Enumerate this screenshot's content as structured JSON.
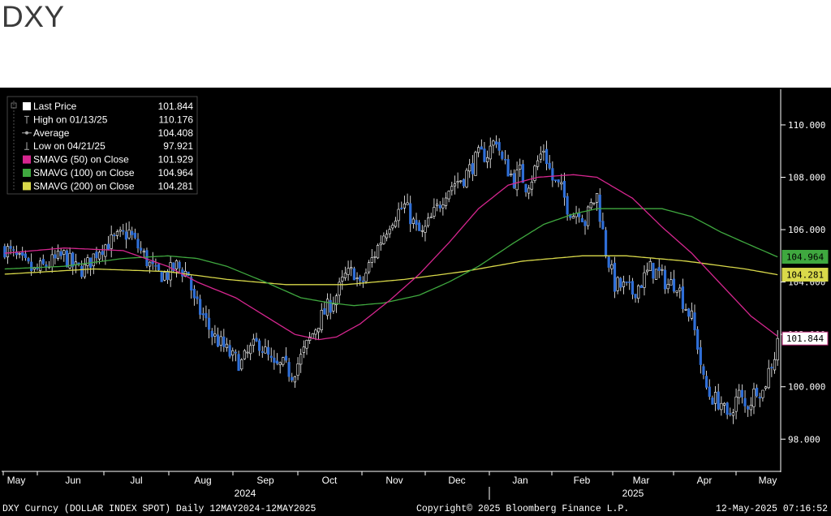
{
  "title": "DXY",
  "chart_data": {
    "type": "candlestick",
    "title": "DXY",
    "ylim": [
      96.8,
      111.3
    ],
    "y_ticks": [
      98,
      100,
      102,
      104,
      106,
      108,
      110
    ],
    "y_tick_labels": [
      "98.000",
      "100.000",
      "102.000",
      "104.000",
      "106.000",
      "108.000",
      "110.000"
    ],
    "x_months": [
      "May",
      "Jun",
      "Jul",
      "Aug",
      "Sep",
      "Oct",
      "Nov",
      "Dec",
      "Jan",
      "Feb",
      "Mar",
      "Apr",
      "May"
    ],
    "x_years": [
      "2024",
      "2025"
    ],
    "grid": false,
    "legend_position": "top-left",
    "colors": {
      "background": "#000000",
      "price": "#ffffff",
      "down_candle": "#2f6fd8",
      "smavg50": "#d6268f",
      "smavg100": "#3fa83f",
      "smavg200": "#d9d94a"
    },
    "legend": [
      {
        "label": "Last Price",
        "value": "101.844",
        "marker": "white-box"
      },
      {
        "label": "High on 01/13/25",
        "value": "110.176",
        "marker": "high-icon"
      },
      {
        "label": "Average",
        "value": "104.408",
        "marker": "average-icon"
      },
      {
        "label": "Low on 04/21/25",
        "value": "97.921",
        "marker": "low-icon"
      },
      {
        "label": "SMAVG (50)  on Close",
        "value": "101.929",
        "marker": "magenta-box"
      },
      {
        "label": "SMAVG (100)  on Close",
        "value": "104.964",
        "marker": "green-box"
      },
      {
        "label": "SMAVG (200)  on Close",
        "value": "104.281",
        "marker": "yellow-box"
      }
    ],
    "price_anchors": [
      [
        0,
        105.3
      ],
      [
        5,
        104.8
      ],
      [
        10,
        104.4
      ],
      [
        15,
        104.7
      ],
      [
        20,
        105.0
      ],
      [
        24,
        104.5
      ],
      [
        27,
        104.5
      ],
      [
        32,
        105.3
      ],
      [
        37,
        105.6
      ],
      [
        42,
        105.9
      ],
      [
        44,
        105.5
      ],
      [
        47,
        105.0
      ],
      [
        51,
        104.3
      ],
      [
        55,
        104.3
      ],
      [
        58,
        104.6
      ],
      [
        62,
        104.3
      ],
      [
        64,
        103.2
      ],
      [
        67,
        102.7
      ],
      [
        70,
        102.0
      ],
      [
        74,
        101.5
      ],
      [
        77,
        101.1
      ],
      [
        80,
        100.9
      ],
      [
        83,
        101.4
      ],
      [
        86,
        101.7
      ],
      [
        88,
        101.3
      ],
      [
        91,
        100.7
      ],
      [
        94,
        100.8
      ],
      [
        97,
        100.5
      ],
      [
        100,
        101.1
      ],
      [
        103,
        101.8
      ],
      [
        106,
        102.5
      ],
      [
        109,
        103.0
      ],
      [
        112,
        103.5
      ],
      [
        115,
        104.2
      ],
      [
        118,
        104.4
      ],
      [
        120,
        103.8
      ],
      [
        123,
        104.6
      ],
      [
        127,
        105.6
      ],
      [
        130,
        106.3
      ],
      [
        132,
        106.6
      ],
      [
        135,
        106.9
      ],
      [
        137,
        106.5
      ],
      [
        139,
        106.0
      ],
      [
        141,
        105.8
      ],
      [
        143,
        106.2
      ],
      [
        146,
        106.8
      ],
      [
        149,
        107.5
      ],
      [
        152,
        107.8
      ],
      [
        155,
        108.0
      ],
      [
        157,
        108.3
      ],
      [
        160,
        108.8
      ],
      [
        163,
        108.9
      ],
      [
        166,
        109.5
      ],
      [
        168,
        108.6
      ],
      [
        170,
        108.3
      ],
      [
        172,
        107.9
      ],
      [
        174,
        108.2
      ],
      [
        176,
        107.7
      ],
      [
        178,
        108.0
      ],
      [
        180,
        108.6
      ],
      [
        182,
        109.1
      ],
      [
        185,
        107.9
      ],
      [
        188,
        107.5
      ],
      [
        190,
        106.9
      ],
      [
        192,
        106.6
      ],
      [
        194,
        106.8
      ],
      [
        196,
        106.3
      ],
      [
        198,
        106.9
      ],
      [
        200,
        107.3
      ],
      [
        203,
        105.2
      ],
      [
        206,
        103.9
      ],
      [
        209,
        103.8
      ],
      [
        212,
        103.6
      ],
      [
        215,
        104.0
      ],
      [
        218,
        104.5
      ],
      [
        221,
        104.3
      ],
      [
        224,
        103.9
      ],
      [
        227,
        104.0
      ],
      [
        229,
        103.3
      ],
      [
        232,
        102.6
      ],
      [
        234,
        101.6
      ],
      [
        236,
        100.2
      ],
      [
        238,
        99.7
      ],
      [
        240,
        99.5
      ],
      [
        242,
        99.4
      ],
      [
        244,
        98.7
      ],
      [
        246,
        99.3
      ],
      [
        248,
        99.7
      ],
      [
        250,
        99.2
      ],
      [
        252,
        99.5
      ],
      [
        254,
        100.0
      ],
      [
        256,
        99.8
      ],
      [
        258,
        100.6
      ],
      [
        260,
        101.2
      ],
      [
        261,
        101.8
      ]
    ],
    "smavg50": [
      [
        0,
        105.1
      ],
      [
        20,
        105.3
      ],
      [
        40,
        105.2
      ],
      [
        55,
        104.6
      ],
      [
        65,
        104.0
      ],
      [
        78,
        103.4
      ],
      [
        88,
        102.7
      ],
      [
        98,
        102.0
      ],
      [
        106,
        101.8
      ],
      [
        112,
        101.9
      ],
      [
        120,
        102.4
      ],
      [
        130,
        103.3
      ],
      [
        140,
        104.3
      ],
      [
        150,
        105.5
      ],
      [
        160,
        106.8
      ],
      [
        170,
        107.7
      ],
      [
        180,
        108.0
      ],
      [
        192,
        108.1
      ],
      [
        200,
        108.0
      ],
      [
        212,
        107.2
      ],
      [
        222,
        106.1
      ],
      [
        232,
        105.1
      ],
      [
        242,
        103.9
      ],
      [
        252,
        102.7
      ],
      [
        261,
        101.93
      ]
    ],
    "smavg100": [
      [
        0,
        104.5
      ],
      [
        20,
        104.6
      ],
      [
        40,
        104.9
      ],
      [
        55,
        105.0
      ],
      [
        65,
        104.9
      ],
      [
        75,
        104.6
      ],
      [
        88,
        104.0
      ],
      [
        100,
        103.4
      ],
      [
        110,
        103.2
      ],
      [
        118,
        103.1
      ],
      [
        128,
        103.2
      ],
      [
        140,
        103.5
      ],
      [
        150,
        104.0
      ],
      [
        160,
        104.6
      ],
      [
        172,
        105.5
      ],
      [
        182,
        106.2
      ],
      [
        192,
        106.6
      ],
      [
        200,
        106.8
      ],
      [
        210,
        106.8
      ],
      [
        222,
        106.8
      ],
      [
        232,
        106.5
      ],
      [
        242,
        105.9
      ],
      [
        252,
        105.4
      ],
      [
        261,
        104.96
      ]
    ],
    "smavg200": [
      [
        0,
        104.3
      ],
      [
        30,
        104.5
      ],
      [
        55,
        104.4
      ],
      [
        75,
        104.1
      ],
      [
        95,
        103.9
      ],
      [
        115,
        103.9
      ],
      [
        135,
        104.1
      ],
      [
        155,
        104.4
      ],
      [
        175,
        104.8
      ],
      [
        195,
        105.0
      ],
      [
        210,
        105.0
      ],
      [
        230,
        104.8
      ],
      [
        250,
        104.5
      ],
      [
        261,
        104.28
      ]
    ],
    "right_labels": [
      {
        "value": 104.964,
        "text": "104.964",
        "color": "#3fa83f"
      },
      {
        "value": 104.281,
        "text": "104.281",
        "color": "#d9d94a"
      },
      {
        "value": 101.844,
        "text": "101.844",
        "color": "#ffffff"
      }
    ]
  },
  "footer": {
    "left": "DXY Curncy (DOLLAR INDEX SPOT)  Daily 12MAY2024-12MAY2025",
    "center": "Copyright© 2025 Bloomberg Finance L.P.",
    "right": "12-May-2025 07:16:52"
  }
}
